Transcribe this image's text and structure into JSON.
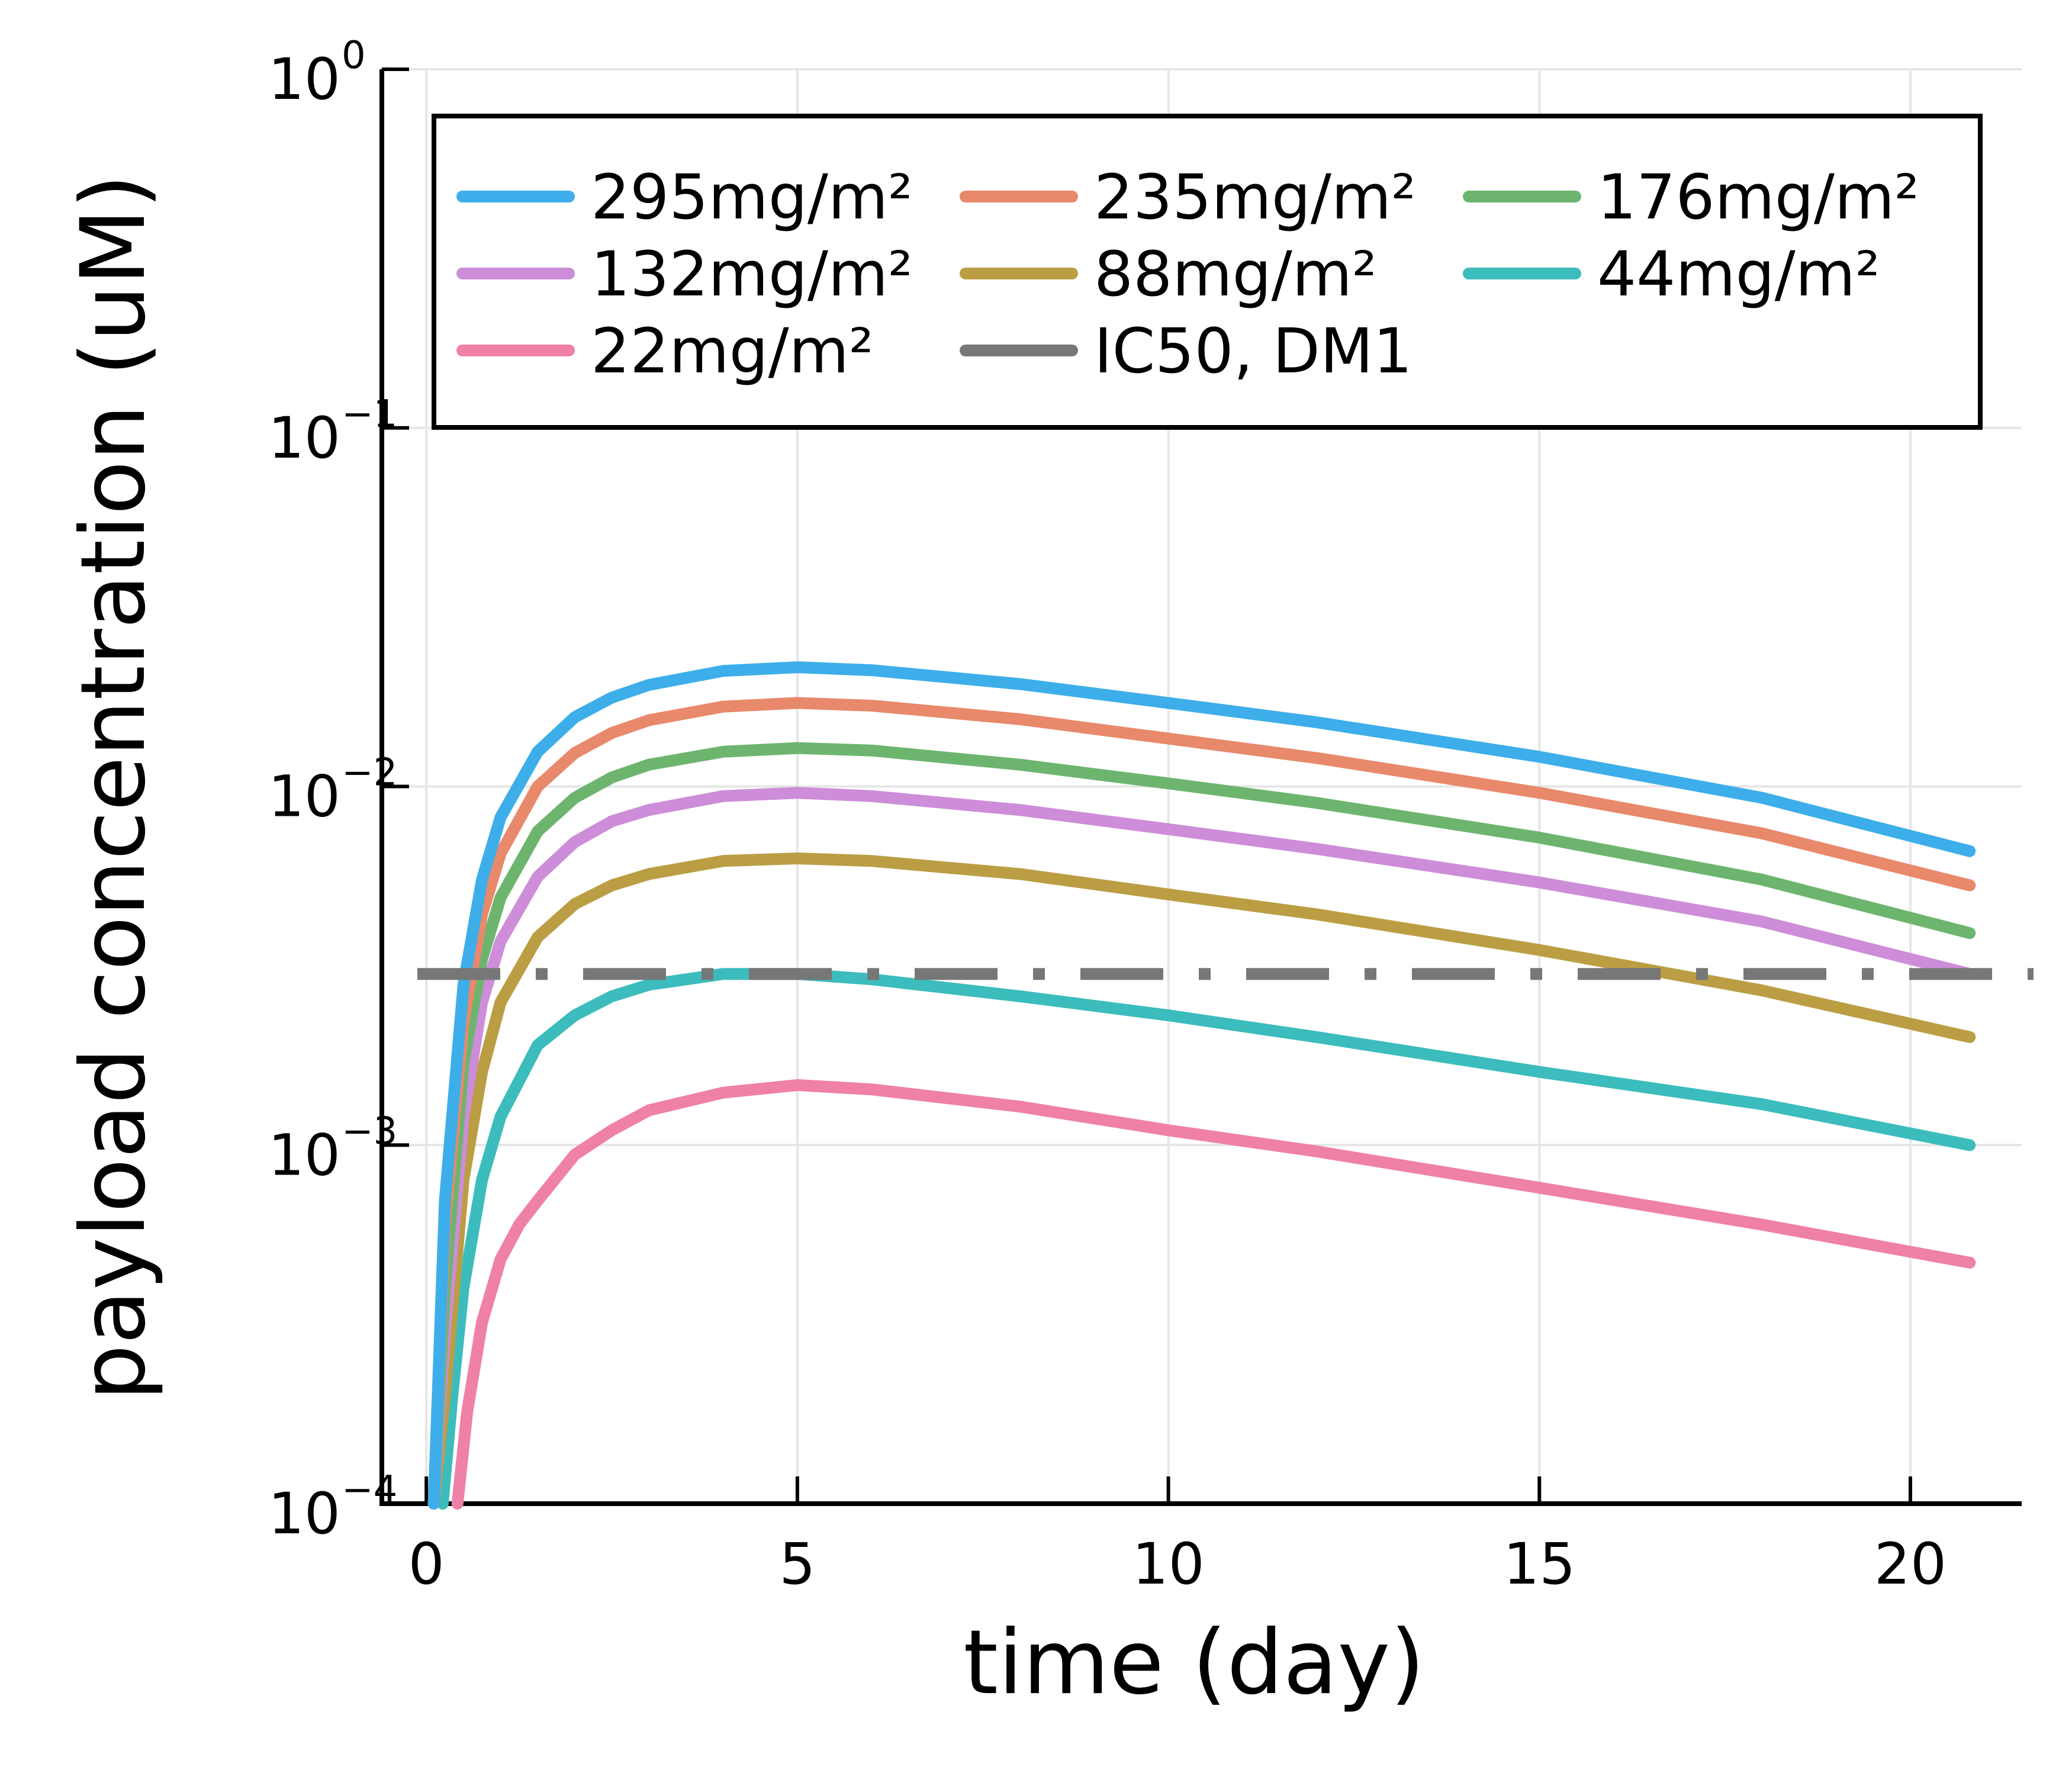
{
  "chart_data": {
    "type": "line",
    "title": "",
    "xlabel": "time (day)",
    "ylabel": "payload concentration (uM)",
    "xlim": [
      -0.6,
      21.5
    ],
    "ylim": [
      0.0001,
      1
    ],
    "yscale": "log",
    "grid": true,
    "legend_position": "top-right",
    "legend_columns": 3,
    "xticks": [
      0,
      5,
      10,
      15,
      20
    ],
    "xtick_labels": [
      "0",
      "5",
      "10",
      "15",
      "20"
    ],
    "yticks": [
      0.0001,
      0.001,
      0.01,
      0.1,
      1
    ],
    "ytick_labels": [
      {
        "base": "10",
        "exp": "−4"
      },
      {
        "base": "10",
        "exp": "−3"
      },
      {
        "base": "10",
        "exp": "−2"
      },
      {
        "base": "10",
        "exp": "−1"
      },
      {
        "base": "10",
        "exp": "0"
      }
    ],
    "series": [
      {
        "name": "295mg/m²",
        "color": "#3daee9",
        "x": [
          0.1,
          0.25,
          0.5,
          0.75,
          1,
          1.5,
          2,
          2.5,
          3,
          4,
          5,
          6,
          8,
          10,
          12,
          15,
          18,
          20.8
        ],
        "y": [
          0.0001,
          0.0007,
          0.0028,
          0.0055,
          0.0082,
          0.0125,
          0.0156,
          0.0177,
          0.0192,
          0.021,
          0.0215,
          0.0211,
          0.0193,
          0.0171,
          0.0151,
          0.0121,
          0.0093,
          0.0066
        ]
      },
      {
        "name": "235mg/m²",
        "color": "#e8896b",
        "x": [
          0.1,
          0.25,
          0.5,
          0.75,
          1,
          1.5,
          2,
          2.5,
          3,
          4,
          5,
          6,
          8,
          10,
          12,
          15,
          18,
          20.8
        ],
        "y": [
          0.0001,
          0.0006,
          0.0022,
          0.0044,
          0.0065,
          0.01,
          0.0124,
          0.0141,
          0.0153,
          0.0167,
          0.0171,
          0.0168,
          0.0154,
          0.0136,
          0.012,
          0.0096,
          0.0074,
          0.0053
        ]
      },
      {
        "name": "176mg/m²",
        "color": "#6db56f",
        "x": [
          0.1,
          0.25,
          0.5,
          0.75,
          1,
          1.5,
          2,
          2.5,
          3,
          4,
          5,
          6,
          8,
          10,
          12,
          15,
          18,
          20.8
        ],
        "y": [
          0.0001,
          0.0004,
          0.0017,
          0.0033,
          0.0049,
          0.0075,
          0.0093,
          0.0106,
          0.0115,
          0.0125,
          0.0128,
          0.0126,
          0.0115,
          0.0102,
          0.009,
          0.0072,
          0.0055,
          0.0039
        ]
      },
      {
        "name": "132mg/m²",
        "color": "#cd8dd8",
        "x": [
          0.1,
          0.25,
          0.5,
          0.75,
          1,
          1.5,
          2,
          2.5,
          3,
          4,
          5,
          6,
          8,
          10,
          12,
          15,
          18,
          20.8
        ],
        "y": [
          0.0001,
          0.0003,
          0.0012,
          0.0025,
          0.0037,
          0.0056,
          0.007,
          0.008,
          0.0086,
          0.0094,
          0.0096,
          0.0094,
          0.0086,
          0.0076,
          0.0067,
          0.0054,
          0.0042,
          0.003
        ]
      },
      {
        "name": "88mg/m²",
        "color": "#bb9e44",
        "x": [
          0.1,
          0.25,
          0.5,
          0.75,
          1,
          1.5,
          2,
          2.5,
          3,
          4,
          5,
          6,
          8,
          10,
          12,
          15,
          18,
          20.8
        ],
        "y": [
          0.0001,
          0.0002,
          0.0008,
          0.0016,
          0.0025,
          0.0038,
          0.0047,
          0.0053,
          0.0057,
          0.0062,
          0.0063,
          0.0062,
          0.0057,
          0.005,
          0.0044,
          0.0035,
          0.0027,
          0.002
        ]
      },
      {
        "name": "44mg/m²",
        "color": "#3cbcbc",
        "x": [
          0.22,
          0.35,
          0.5,
          0.75,
          1,
          1.5,
          2,
          2.5,
          3,
          4,
          5,
          6,
          8,
          10,
          12,
          15,
          18,
          20.8
        ],
        "y": [
          0.0001,
          0.0002,
          0.0004,
          0.0008,
          0.0012,
          0.0019,
          0.0023,
          0.0026,
          0.0028,
          0.003,
          0.003,
          0.0029,
          0.0026,
          0.0023,
          0.002,
          0.0016,
          0.0013,
          0.001
        ]
      },
      {
        "name": "22mg/m²",
        "color": "#ef80a8",
        "x": [
          0.42,
          0.55,
          0.75,
          1,
          1.25,
          1.5,
          2,
          2.5,
          3,
          4,
          5,
          6,
          8,
          10,
          12,
          15,
          18,
          20.8
        ],
        "y": [
          0.0001,
          0.00018,
          0.00032,
          0.00048,
          0.0006,
          0.0007,
          0.00094,
          0.0011,
          0.00125,
          0.0014,
          0.00147,
          0.00143,
          0.00128,
          0.0011,
          0.00096,
          0.00076,
          0.0006,
          0.00047
        ]
      }
    ],
    "reference_lines": [
      {
        "name": "IC50, DM1",
        "color": "#777777",
        "y": 0.003,
        "style": "dash-dot"
      }
    ]
  }
}
